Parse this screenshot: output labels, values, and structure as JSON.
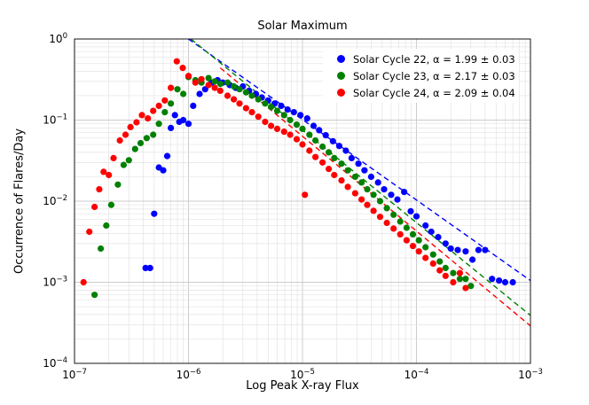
{
  "chart_data": {
    "type": "scatter",
    "title": "Solar Maximum",
    "xlabel": "Log Peak X-ray Flux",
    "ylabel": "Occurrence of Flares/Day",
    "x_scale": "log",
    "y_scale": "log",
    "xlim": [
      1e-07,
      0.001
    ],
    "ylim": [
      0.0001,
      1
    ],
    "x_tick_exponents": [
      -7,
      -6,
      -5,
      -4,
      -3
    ],
    "y_tick_exponents": [
      -4,
      -3,
      -2,
      -1,
      0
    ],
    "grid": true,
    "legend_position": "upper right",
    "colors": {
      "background": "#ffffff",
      "grid_major": "#cccccc",
      "grid_minor": "#e3e3e3",
      "spine": "#000000",
      "cycle22": "#0000ff",
      "cycle23": "#008000",
      "cycle24": "#ff0000"
    },
    "series": [
      {
        "name": "Solar Cycle 22",
        "legend_label": "Solar Cycle 22, α = 1.99 ± 0.03",
        "alpha": "1.99 ± 0.03",
        "color": "#0000ff",
        "fit_line": [
          [
            1e-06,
            1.0
          ],
          [
            0.001,
            0.00105
          ]
        ],
        "points": [
          [
            4.2e-07,
            0.0015
          ],
          [
            4.6e-07,
            0.0015
          ],
          [
            5e-07,
            0.007
          ],
          [
            5.5e-07,
            0.026
          ],
          [
            6e-07,
            0.024
          ],
          [
            6.5e-07,
            0.036
          ],
          [
            7e-07,
            0.08
          ],
          [
            7.6e-07,
            0.115
          ],
          [
            8.3e-07,
            0.095
          ],
          [
            9e-07,
            0.1
          ],
          [
            1e-06,
            0.09
          ],
          [
            1.1e-06,
            0.15
          ],
          [
            1.25e-06,
            0.21
          ],
          [
            1.4e-06,
            0.24
          ],
          [
            1.6e-06,
            0.29
          ],
          [
            1.8e-06,
            0.31
          ],
          [
            2e-06,
            0.29
          ],
          [
            2.3e-06,
            0.27
          ],
          [
            2.6e-06,
            0.25
          ],
          [
            3e-06,
            0.26
          ],
          [
            3.4e-06,
            0.23
          ],
          [
            3.9e-06,
            0.21
          ],
          [
            4.4e-06,
            0.19
          ],
          [
            5e-06,
            0.175
          ],
          [
            5.7e-06,
            0.16
          ],
          [
            6.5e-06,
            0.15
          ],
          [
            7.4e-06,
            0.135
          ],
          [
            8.4e-06,
            0.125
          ],
          [
            9.6e-06,
            0.115
          ],
          [
            1.1e-05,
            0.105
          ],
          [
            1.25e-05,
            0.085
          ],
          [
            1.4e-05,
            0.075
          ],
          [
            1.6e-05,
            0.065
          ],
          [
            1.85e-05,
            0.055
          ],
          [
            2.1e-05,
            0.048
          ],
          [
            2.4e-05,
            0.042
          ],
          [
            2.7e-05,
            0.034
          ],
          [
            3.1e-05,
            0.029
          ],
          [
            3.5e-05,
            0.024
          ],
          [
            4e-05,
            0.02
          ],
          [
            4.6e-05,
            0.017
          ],
          [
            5.2e-05,
            0.014
          ],
          [
            6e-05,
            0.012
          ],
          [
            6.8e-05,
            0.0105
          ],
          [
            7.8e-05,
            0.013
          ],
          [
            8.9e-05,
            0.0075
          ],
          [
            0.0001,
            0.0065
          ],
          [
            0.00012,
            0.005
          ],
          [
            0.000135,
            0.0042
          ],
          [
            0.000155,
            0.0036
          ],
          [
            0.00018,
            0.003
          ],
          [
            0.0002,
            0.0026
          ],
          [
            0.00023,
            0.0025
          ],
          [
            0.00027,
            0.0024
          ],
          [
            0.00031,
            0.0019
          ],
          [
            0.00035,
            0.0025
          ],
          [
            0.0004,
            0.0025
          ],
          [
            0.00046,
            0.0011
          ],
          [
            0.00053,
            0.00105
          ],
          [
            0.0006,
            0.001
          ],
          [
            0.0007,
            0.001
          ]
        ]
      },
      {
        "name": "Solar Cycle 23",
        "legend_label": "Solar Cycle 23, α = 2.17 ± 0.03",
        "alpha": "2.17 ± 0.03",
        "color": "#008000",
        "fit_line": [
          [
            1.05e-06,
            1.0
          ],
          [
            0.001,
            0.00039
          ]
        ],
        "points": [
          [
            1.5e-07,
            0.0007
          ],
          [
            1.7e-07,
            0.0026
          ],
          [
            1.9e-07,
            0.005
          ],
          [
            2.1e-07,
            0.009
          ],
          [
            2.4e-07,
            0.016
          ],
          [
            2.7e-07,
            0.028
          ],
          [
            3e-07,
            0.032
          ],
          [
            3.4e-07,
            0.044
          ],
          [
            3.8e-07,
            0.052
          ],
          [
            4.3e-07,
            0.06
          ],
          [
            4.9e-07,
            0.066
          ],
          [
            5.5e-07,
            0.09
          ],
          [
            6.2e-07,
            0.125
          ],
          [
            7e-07,
            0.16
          ],
          [
            8e-07,
            0.24
          ],
          [
            9e-07,
            0.21
          ],
          [
            1e-06,
            0.34
          ],
          [
            1.15e-06,
            0.31
          ],
          [
            1.3e-06,
            0.29
          ],
          [
            1.5e-06,
            0.33
          ],
          [
            1.7e-06,
            0.3
          ],
          [
            1.9e-06,
            0.28
          ],
          [
            2.2e-06,
            0.29
          ],
          [
            2.5e-06,
            0.26
          ],
          [
            2.8e-06,
            0.24
          ],
          [
            3.2e-06,
            0.22
          ],
          [
            3.6e-06,
            0.2
          ],
          [
            4.1e-06,
            0.18
          ],
          [
            4.7e-06,
            0.16
          ],
          [
            5.3e-06,
            0.145
          ],
          [
            6e-06,
            0.13
          ],
          [
            6.9e-06,
            0.115
          ],
          [
            7.8e-06,
            0.1
          ],
          [
            8.9e-06,
            0.088
          ],
          [
            1e-05,
            0.078
          ],
          [
            1.15e-05,
            0.066
          ],
          [
            1.3e-05,
            0.056
          ],
          [
            1.5e-05,
            0.047
          ],
          [
            1.7e-05,
            0.04
          ],
          [
            1.9e-05,
            0.034
          ],
          [
            2.2e-05,
            0.029
          ],
          [
            2.5e-05,
            0.024
          ],
          [
            2.9e-05,
            0.02
          ],
          [
            3.3e-05,
            0.017
          ],
          [
            3.7e-05,
            0.014
          ],
          [
            4.2e-05,
            0.012
          ],
          [
            4.8e-05,
            0.01
          ],
          [
            5.5e-05,
            0.0082
          ],
          [
            6.3e-05,
            0.0068
          ],
          [
            7.2e-05,
            0.0056
          ],
          [
            8.2e-05,
            0.0047
          ],
          [
            9.3e-05,
            0.0039
          ],
          [
            0.000105,
            0.0033
          ],
          [
            0.00012,
            0.0027
          ],
          [
            0.00014,
            0.0022
          ],
          [
            0.00016,
            0.0018
          ],
          [
            0.00018,
            0.0015
          ],
          [
            0.00021,
            0.0013
          ],
          [
            0.00024,
            0.0011
          ],
          [
            0.00027,
            0.0011
          ],
          [
            0.0003,
            0.0009
          ]
        ]
      },
      {
        "name": "Solar Cycle 24",
        "legend_label": "Solar Cycle 24, α = 2.09 ± 0.04",
        "alpha": "2.09 ± 0.04",
        "color": "#ff0000",
        "fit_line": [
          [
            1.9e-06,
            0.44
          ],
          [
            0.001,
            0.00029
          ]
        ],
        "points": [
          [
            1.2e-07,
            0.001
          ],
          [
            1.35e-07,
            0.0042
          ],
          [
            1.5e-07,
            0.0085
          ],
          [
            1.65e-07,
            0.014
          ],
          [
            1.8e-07,
            0.023
          ],
          [
            2e-07,
            0.021
          ],
          [
            2.2e-07,
            0.034
          ],
          [
            2.5e-07,
            0.056
          ],
          [
            2.8e-07,
            0.066
          ],
          [
            3.1e-07,
            0.082
          ],
          [
            3.5e-07,
            0.094
          ],
          [
            3.9e-07,
            0.115
          ],
          [
            4.4e-07,
            0.105
          ],
          [
            4.9e-07,
            0.13
          ],
          [
            5.5e-07,
            0.15
          ],
          [
            6.2e-07,
            0.175
          ],
          [
            7e-07,
            0.25
          ],
          [
            7.9e-07,
            0.53
          ],
          [
            8.9e-07,
            0.44
          ],
          [
            1e-06,
            0.35
          ],
          [
            1.15e-06,
            0.29
          ],
          [
            1.3e-06,
            0.32
          ],
          [
            1.5e-06,
            0.27
          ],
          [
            1.7e-06,
            0.25
          ],
          [
            1.9e-06,
            0.23
          ],
          [
            2.2e-06,
            0.2
          ],
          [
            2.5e-06,
            0.18
          ],
          [
            2.8e-06,
            0.16
          ],
          [
            3.2e-06,
            0.14
          ],
          [
            3.6e-06,
            0.125
          ],
          [
            4.1e-06,
            0.11
          ],
          [
            4.7e-06,
            0.095
          ],
          [
            5.3e-06,
            0.085
          ],
          [
            6e-06,
            0.078
          ],
          [
            6.9e-06,
            0.072
          ],
          [
            7.8e-06,
            0.066
          ],
          [
            8.9e-06,
            0.058
          ],
          [
            1e-05,
            0.05
          ],
          [
            1.05e-05,
            0.012
          ],
          [
            1.15e-05,
            0.042
          ],
          [
            1.3e-05,
            0.035
          ],
          [
            1.5e-05,
            0.03
          ],
          [
            1.7e-05,
            0.025
          ],
          [
            1.9e-05,
            0.021
          ],
          [
            2.2e-05,
            0.018
          ],
          [
            2.5e-05,
            0.015
          ],
          [
            2.9e-05,
            0.0125
          ],
          [
            3.3e-05,
            0.0105
          ],
          [
            3.7e-05,
            0.009
          ],
          [
            4.2e-05,
            0.0076
          ],
          [
            4.8e-05,
            0.0064
          ],
          [
            5.5e-05,
            0.0054
          ],
          [
            6.3e-05,
            0.0046
          ],
          [
            7.2e-05,
            0.0039
          ],
          [
            8.2e-05,
            0.0033
          ],
          [
            9.3e-05,
            0.0028
          ],
          [
            0.000105,
            0.0024
          ],
          [
            0.00012,
            0.002
          ],
          [
            0.00014,
            0.0017
          ],
          [
            0.00016,
            0.0014
          ],
          [
            0.00018,
            0.0012
          ],
          [
            0.00021,
            0.001
          ],
          [
            0.00024,
            0.0013
          ],
          [
            0.00027,
            0.00085
          ]
        ]
      }
    ]
  }
}
